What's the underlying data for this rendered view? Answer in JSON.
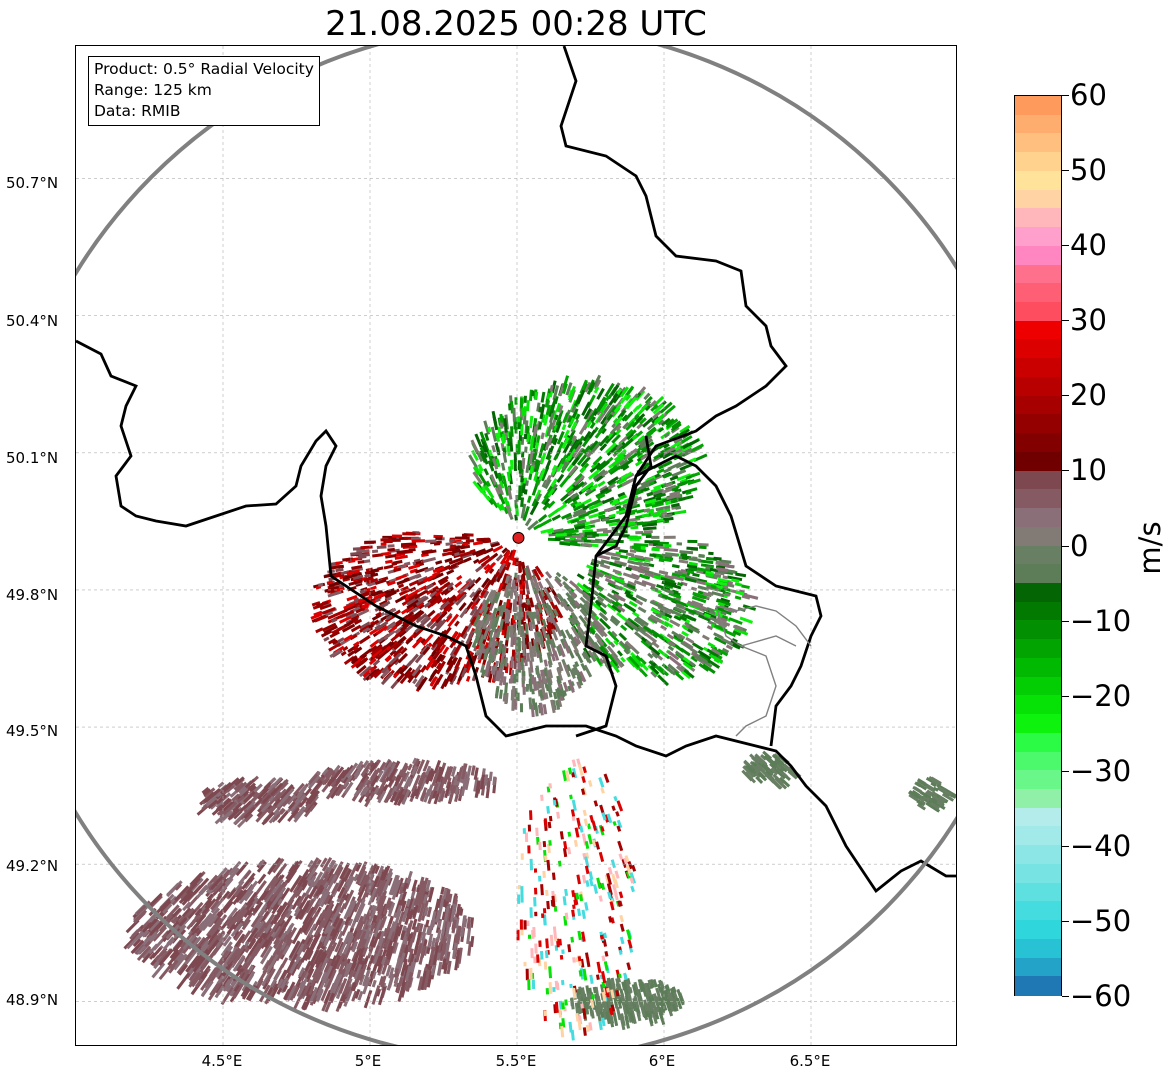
{
  "title": "21.08.2025 00:28 UTC",
  "info_box": {
    "product": "Product: 0.5° Radial Velocity",
    "range": "Range: 125 km",
    "data": "Data: RMIB"
  },
  "axes": {
    "lat_ticks": [
      "50.7°N",
      "50.4°N",
      "50.1°N",
      "49.8°N",
      "49.5°N",
      "49.2°N",
      "48.9°N"
    ],
    "lon_ticks": [
      "4.5°E",
      "5°E",
      "5.5°E",
      "6°E",
      "6.5°E"
    ],
    "lon_range": [
      4.0,
      7.0
    ],
    "lat_range": [
      48.8,
      50.99
    ],
    "grid": true
  },
  "radar_site": {
    "lat": 49.914,
    "lon": 5.505,
    "color": "#e02020"
  },
  "range_ring_color": "#808080",
  "colorbar": {
    "unit": "m/s",
    "min": -60,
    "max": 60,
    "tick_labels": [
      "60",
      "50",
      "40",
      "30",
      "20",
      "10",
      "0",
      "−10",
      "−20",
      "−30",
      "−40",
      "−50",
      "−60"
    ],
    "colors_bottom_to_top": [
      "#1f77b4",
      "#23a3c8",
      "#27c3d4",
      "#2fd6dc",
      "#45dcdf",
      "#5fe0e0",
      "#78e3e3",
      "#8de6e6",
      "#a2e9e9",
      "#b4ecec",
      "#90f0a8",
      "#6af78a",
      "#4cf96d",
      "#2cfb45",
      "#0ef30e",
      "#06e106",
      "#03cd03",
      "#02b902",
      "#02a402",
      "#028f02",
      "#027a02",
      "#036503",
      "#5c7d58",
      "#687f63",
      "#827a74",
      "#8a6e78",
      "#855a63",
      "#7e4850",
      "#700000",
      "#820000",
      "#940000",
      "#a60000",
      "#b80000",
      "#ca0000",
      "#dc0000",
      "#ee0000",
      "#ff4d60",
      "#ff5f75",
      "#ff708c",
      "#ff86c0",
      "#ff9fcc",
      "#ffb7bc",
      "#ffd3a4",
      "#ffe39a",
      "#ffd28e",
      "#ffbf7e",
      "#ffad6e",
      "#ff9a5d"
    ]
  }
}
